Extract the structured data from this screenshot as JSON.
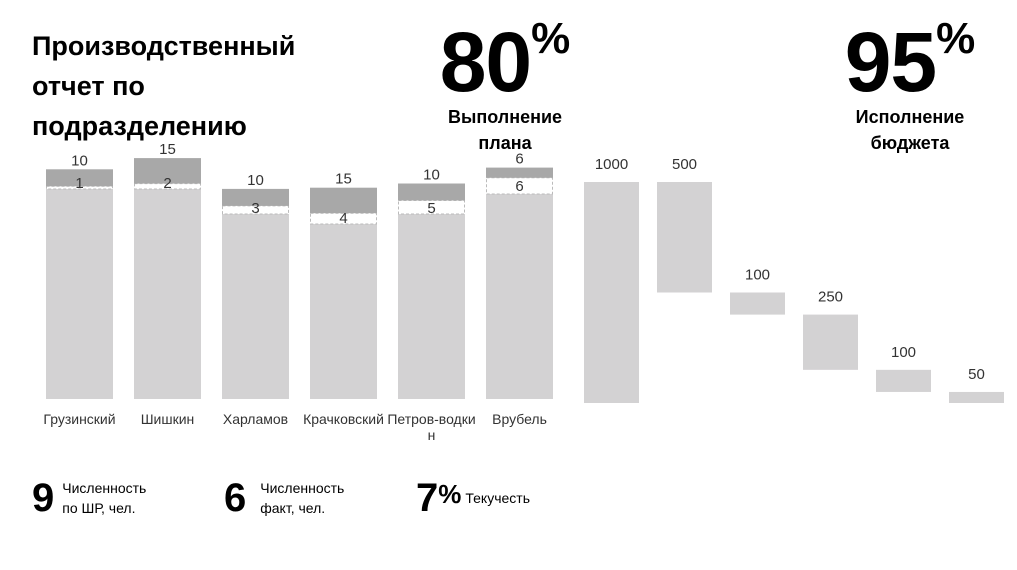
{
  "title": "Производственный отчет по подразделению",
  "kpi_plan": {
    "value": "80",
    "unit": "%",
    "label_line1": "Выполнение",
    "label_line2": "плана"
  },
  "kpi_budget": {
    "value": "95",
    "unit": "%",
    "label_line1": "Исполнение",
    "label_line2": "бюджета"
  },
  "stats": {
    "shr": {
      "value": "9",
      "label_line1": "Численность",
      "label_line2": "по ШР, чел."
    },
    "fact": {
      "value": "6",
      "label_line1": "Численность",
      "label_line2": "факт, чел."
    },
    "turnover": {
      "value": "7",
      "unit": "%",
      "label": "Текучесть"
    }
  },
  "chart_data": [
    {
      "type": "bar",
      "categories": [
        "Грузинский",
        "Шишкин",
        "Харламов",
        "Крачковский",
        "Петров-водкин",
        "Врубель"
      ],
      "category_labels": [
        [
          "Грузинский"
        ],
        [
          "Шишкин"
        ],
        [
          "Харламов"
        ],
        [
          "Крачковский"
        ],
        [
          "Петров-водки",
          "н"
        ],
        [
          "Врубель"
        ]
      ],
      "series": [
        {
          "values": [
            210,
            210,
            185,
            175,
            185,
            205
          ]
        },
        {
          "values": [
            1,
            2,
            3,
            4,
            5,
            6
          ]
        },
        {
          "values": [
            10,
            15,
            10,
            15,
            10,
            6
          ]
        }
      ],
      "top_labels": [
        "10",
        "15",
        "10",
        "15",
        "10",
        "6"
      ],
      "mid_labels": [
        "1",
        "2",
        "3",
        "4",
        "5",
        "6"
      ],
      "colors": {
        "base": "#d3d2d3",
        "top": "#a8a8a8",
        "dashed": "#bbbbbb"
      }
    },
    {
      "type": "waterfall",
      "values": [
        1000,
        500,
        100,
        250,
        100,
        50
      ],
      "labels": [
        "1000",
        "500",
        "100",
        "250",
        "100",
        "50"
      ],
      "color": "#d3d2d3"
    }
  ]
}
